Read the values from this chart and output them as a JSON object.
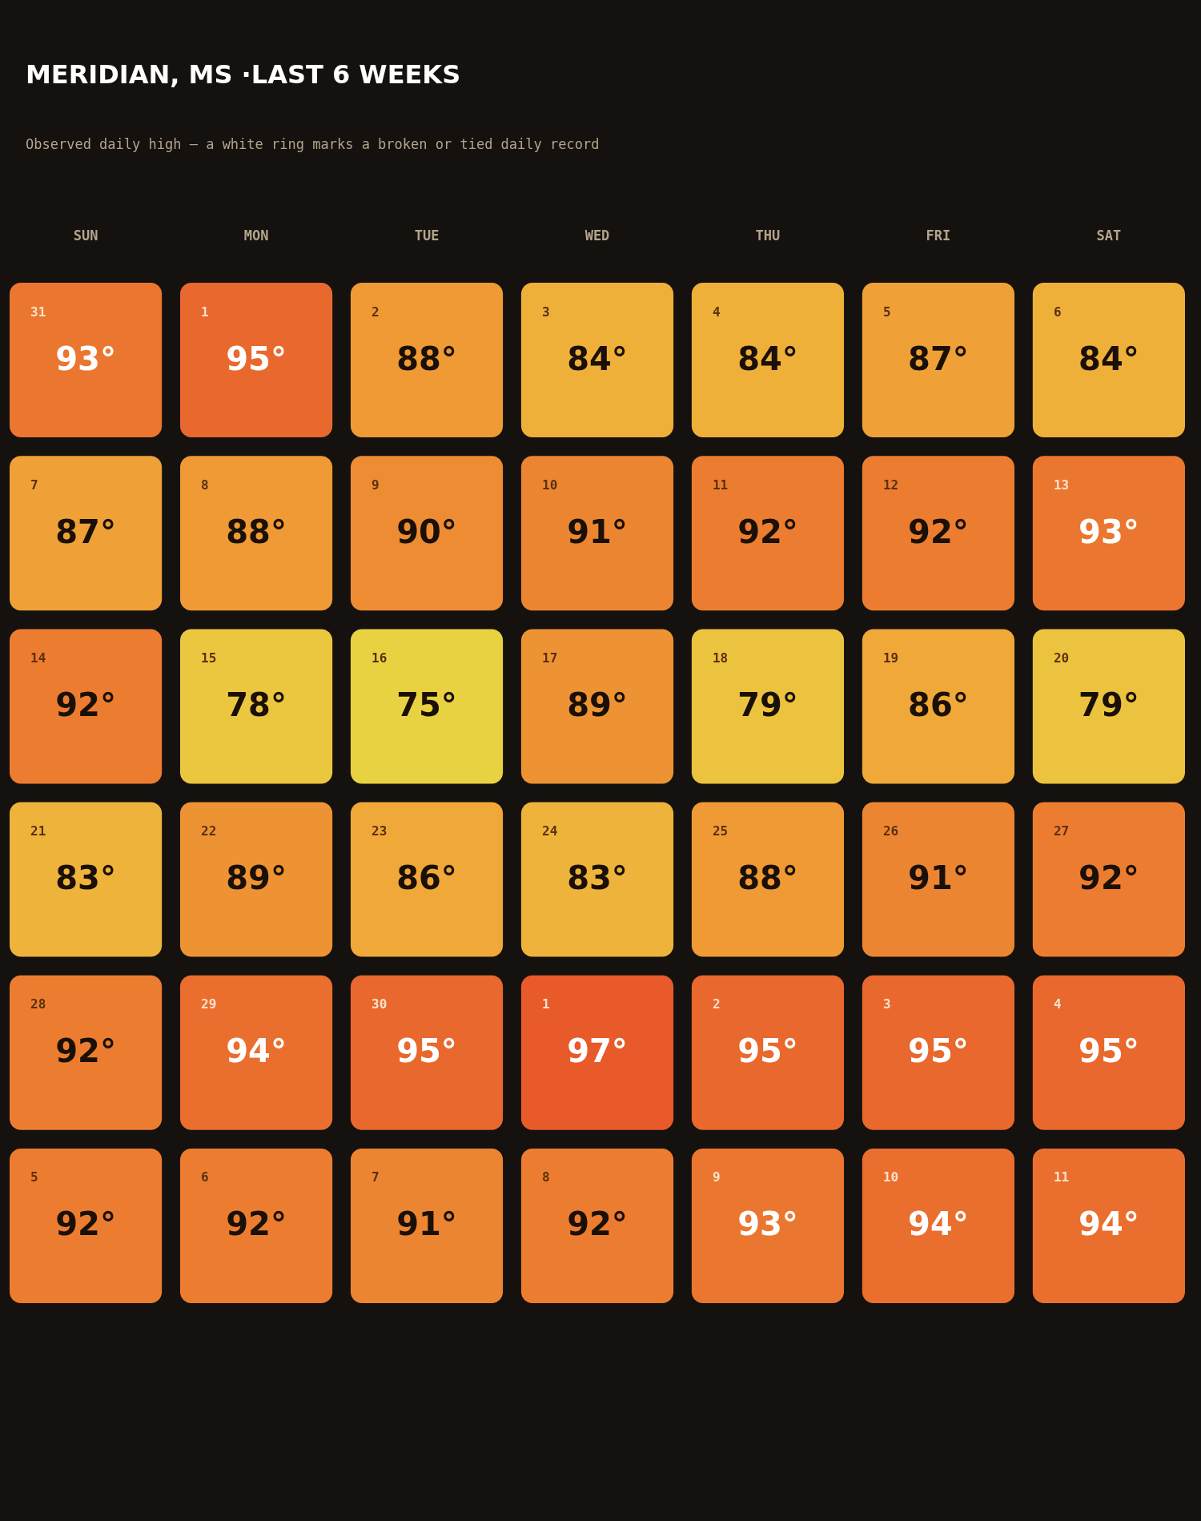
{
  "chart_data": {
    "type": "heatmap",
    "title": "MERIDIAN, MS ·LAST 6 WEEKS",
    "subtitle": "Observed daily high — a white ring marks a broken or tied daily record",
    "categories": [
      "SUN",
      "MON",
      "TUE",
      "WED",
      "THU",
      "FRI",
      "SAT"
    ],
    "y_categories": [
      null,
      null,
      null,
      null,
      null,
      null
    ],
    "cells": [
      [
        93,
        95,
        88,
        84,
        84,
        87,
        84
      ],
      [
        87,
        88,
        90,
        91,
        92,
        92,
        93
      ],
      [
        92,
        78,
        75,
        89,
        79,
        86,
        79
      ],
      [
        83,
        89,
        86,
        83,
        88,
        91,
        92
      ],
      [
        92,
        94,
        95,
        97,
        95,
        95,
        95
      ],
      [
        92,
        92,
        91,
        92,
        93,
        94,
        94
      ]
    ],
    "cell_labels": [
      [
        "93°",
        "95°",
        "88°",
        "84°",
        "84°",
        "87°",
        "84°"
      ],
      [
        "87°",
        "88°",
        "90°",
        "91°",
        "92°",
        "92°",
        "93°"
      ],
      [
        "92°",
        "78°",
        "75°",
        "89°",
        "79°",
        "86°",
        "79°"
      ],
      [
        "83°",
        "89°",
        "86°",
        "83°",
        "88°",
        "91°",
        "92°"
      ],
      [
        "92°",
        "94°",
        "95°",
        "97°",
        "95°",
        "95°",
        "95°"
      ],
      [
        "92°",
        "92°",
        "91°",
        "92°",
        "93°",
        "94°",
        "94°"
      ]
    ],
    "annotations": [
      "31",
      "1",
      "2",
      "3",
      "4",
      "5",
      "6",
      "7",
      "8",
      "9",
      "10",
      "11",
      "12",
      "13",
      "14",
      "15",
      "16",
      "17",
      "18",
      "19",
      "20",
      "21",
      "22",
      "23",
      "24",
      "25",
      "26",
      "27",
      "28",
      "29",
      "30",
      "1",
      "2",
      "3",
      "4",
      "5",
      "6",
      "7",
      "8",
      "9",
      "10",
      "11"
    ],
    "colors": [
      "#e9d242",
      "#f0a838",
      "#e85a2a"
    ]
  }
}
